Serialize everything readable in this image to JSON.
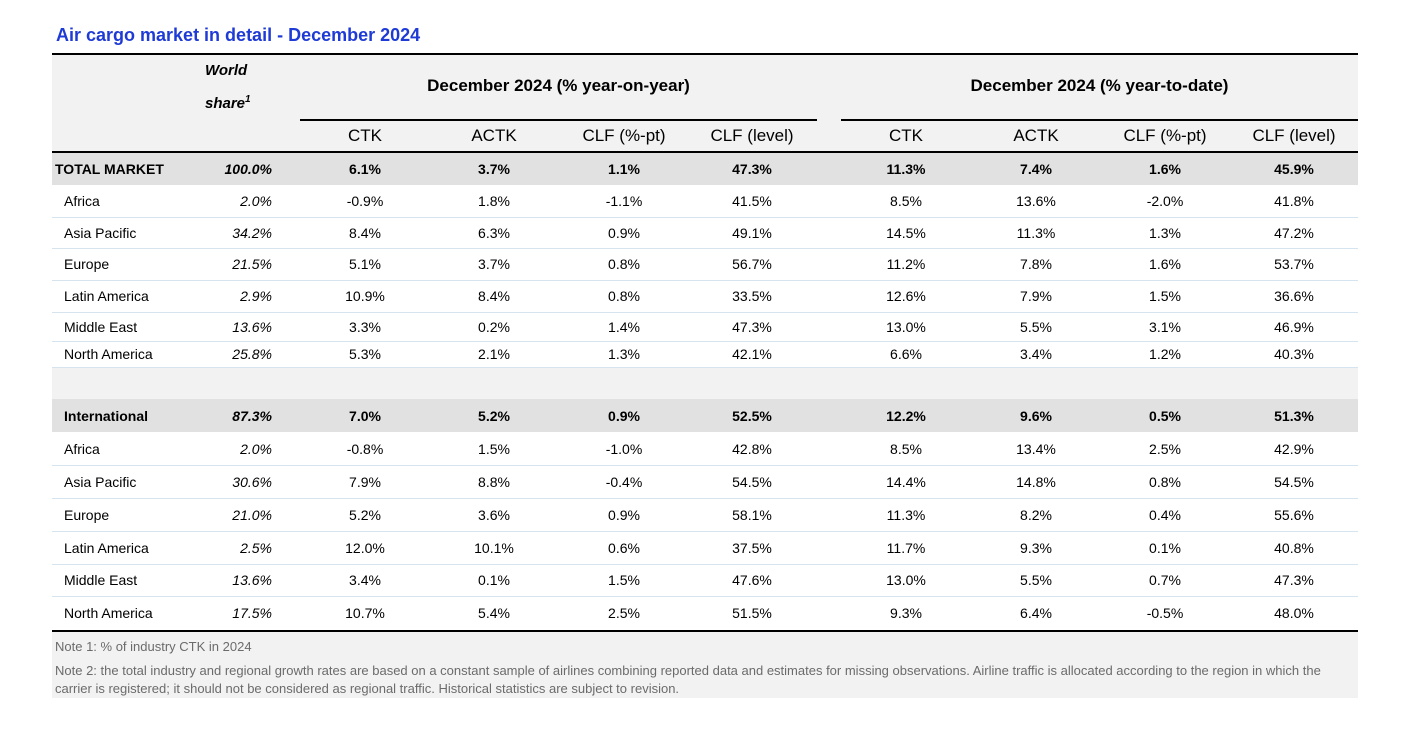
{
  "title": "Air cargo market in detail - December 2024",
  "header": {
    "world_share_line1": "World",
    "world_share_line2": "share",
    "world_share_sup": "1",
    "group_yoy": "December 2024 (% year-on-year)",
    "group_ytd": "December 2024 (% year-to-date)",
    "columns": [
      "CTK",
      "ACTK",
      "CLF (%-pt)",
      "CLF (level)",
      "CTK",
      "ACTK",
      "CLF (%-pt)",
      "CLF (level)"
    ]
  },
  "rows": [
    {
      "label": "TOTAL MARKET",
      "share": "100.0%",
      "values": [
        "6.1%",
        "3.7%",
        "1.1%",
        "47.3%",
        "11.3%",
        "7.4%",
        "1.6%",
        "45.9%"
      ]
    },
    {
      "label": "Africa",
      "share": "2.0%",
      "values": [
        "-0.9%",
        "1.8%",
        "-1.1%",
        "41.5%",
        "8.5%",
        "13.6%",
        "-2.0%",
        "41.8%"
      ]
    },
    {
      "label": "Asia Pacific",
      "share": "34.2%",
      "values": [
        "8.4%",
        "6.3%",
        "0.9%",
        "49.1%",
        "14.5%",
        "11.3%",
        "1.3%",
        "47.2%"
      ]
    },
    {
      "label": "Europe",
      "share": "21.5%",
      "values": [
        "5.1%",
        "3.7%",
        "0.8%",
        "56.7%",
        "11.2%",
        "7.8%",
        "1.6%",
        "53.7%"
      ]
    },
    {
      "label": "Latin America",
      "share": "2.9%",
      "values": [
        "10.9%",
        "8.4%",
        "0.8%",
        "33.5%",
        "12.6%",
        "7.9%",
        "1.5%",
        "36.6%"
      ]
    },
    {
      "label": "Middle East",
      "share": "13.6%",
      "values": [
        "3.3%",
        "0.2%",
        "1.4%",
        "47.3%",
        "13.0%",
        "5.5%",
        "3.1%",
        "46.9%"
      ]
    },
    {
      "label": "North America",
      "share": "25.8%",
      "values": [
        "5.3%",
        "2.1%",
        "1.3%",
        "42.1%",
        "6.6%",
        "3.4%",
        "1.2%",
        "40.3%"
      ]
    },
    {
      "label": "International",
      "share": "87.3%",
      "values": [
        "7.0%",
        "5.2%",
        "0.9%",
        "52.5%",
        "12.2%",
        "9.6%",
        "0.5%",
        "51.3%"
      ]
    },
    {
      "label": "Africa",
      "share": "2.0%",
      "values": [
        "-0.8%",
        "1.5%",
        "-1.0%",
        "42.8%",
        "8.5%",
        "13.4%",
        "2.5%",
        "42.9%"
      ]
    },
    {
      "label": "Asia Pacific",
      "share": "30.6%",
      "values": [
        "7.9%",
        "8.8%",
        "-0.4%",
        "54.5%",
        "14.4%",
        "14.8%",
        "0.8%",
        "54.5%"
      ]
    },
    {
      "label": "Europe",
      "share": "21.0%",
      "values": [
        "5.2%",
        "3.6%",
        "0.9%",
        "58.1%",
        "11.3%",
        "8.2%",
        "0.4%",
        "55.6%"
      ]
    },
    {
      "label": "Latin America",
      "share": "2.5%",
      "values": [
        "12.0%",
        "10.1%",
        "0.6%",
        "37.5%",
        "11.7%",
        "9.3%",
        "0.1%",
        "40.8%"
      ]
    },
    {
      "label": "Middle East",
      "share": "13.6%",
      "values": [
        "3.4%",
        "0.1%",
        "1.5%",
        "47.6%",
        "13.0%",
        "5.5%",
        "0.7%",
        "47.3%"
      ]
    },
    {
      "label": "North America",
      "share": "17.5%",
      "values": [
        "10.7%",
        "5.4%",
        "2.5%",
        "51.5%",
        "9.3%",
        "6.4%",
        "-0.5%",
        "48.0%"
      ]
    }
  ],
  "notes": [
    "Note 1: % of industry CTK in 2024",
    "Note 2: the total industry and regional growth rates are based on a constant sample of airlines combining reported data and estimates for missing observations. Airline traffic is allocated according to the region in which the carrier is registered; it should not be considered as regional traffic. Historical statistics are subject to revision."
  ],
  "colors": {
    "title": "#1f3bd6",
    "header_bg": "#f2f2f2",
    "total_row_bg": "#e1e1e1",
    "row_separator": "#d6e4f0",
    "note_text": "#6b6b6b"
  }
}
